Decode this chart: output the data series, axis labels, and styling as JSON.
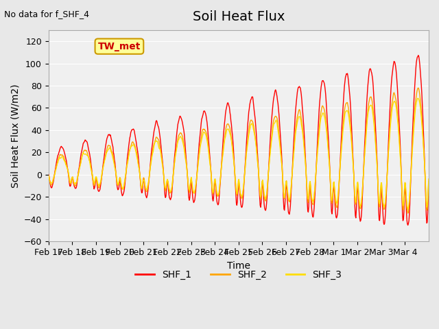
{
  "title": "Soil Heat Flux",
  "top_left_text": "No data for f_SHF_4",
  "xlabel": "Time",
  "ylabel": "Soil Heat Flux (W/m2)",
  "ylim": [
    -60,
    130
  ],
  "yticks": [
    -60,
    -40,
    -20,
    0,
    20,
    40,
    60,
    80,
    100,
    120
  ],
  "x_tick_labels": [
    "Feb 17",
    "Feb 18",
    "Feb 19",
    "Feb 20",
    "Feb 21",
    "Feb 22",
    "Feb 23",
    "Feb 24",
    "Feb 25",
    "Feb 26",
    "Feb 27",
    "Feb 28",
    "Mar 1",
    "Mar 2",
    "Mar 3",
    "Mar 4"
  ],
  "legend_entries": [
    "SHF_1",
    "SHF_2",
    "SHF_3"
  ],
  "legend_colors": [
    "#ff0000",
    "#ffa500",
    "#ffdd00"
  ],
  "shf1_color": "#ff0000",
  "shf2_color": "#ffa500",
  "shf3_color": "#ffdd00",
  "bg_color": "#e8e8e8",
  "plot_bg_color": "#f0f0f0",
  "grid_color": "#ffffff",
  "annotation_box_color": "#ffff99",
  "annotation_box_edge": "#cc9900",
  "annotation_text": "TW_met",
  "annotation_text_color": "#cc0000",
  "title_fontsize": 14,
  "label_fontsize": 10,
  "tick_fontsize": 9
}
